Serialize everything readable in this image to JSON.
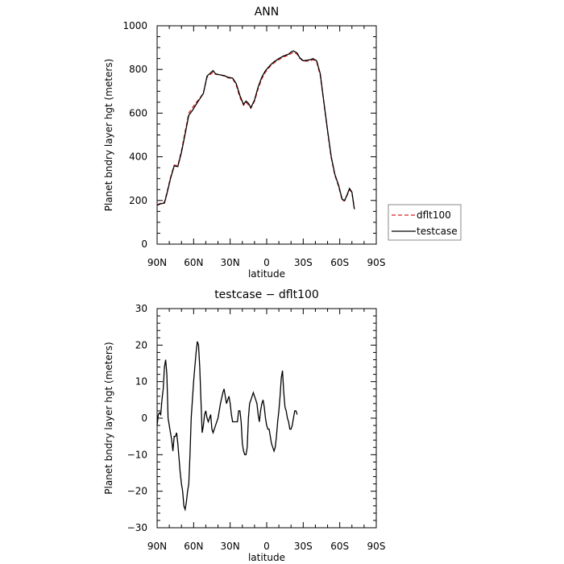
{
  "chart_data": [
    {
      "type": "line",
      "title": "ANN",
      "xlabel": "latitude",
      "ylabel": "Planet bndry layer hgt (meters)",
      "xlim": [
        90,
        -90
      ],
      "ylim": [
        0,
        1000
      ],
      "x_ticks": [
        {
          "value": 90,
          "label": "90N"
        },
        {
          "value": 60,
          "label": "60N"
        },
        {
          "value": 30,
          "label": "30N"
        },
        {
          "value": 0,
          "label": "0"
        },
        {
          "value": -30,
          "label": "30S"
        },
        {
          "value": -60,
          "label": "60S"
        },
        {
          "value": -90,
          "label": "90S"
        }
      ],
      "y_ticks": [
        0,
        200,
        400,
        600,
        800,
        1000
      ],
      "legend": {
        "placement": "right",
        "entries": [
          "dflt100",
          "testcase"
        ]
      },
      "series": [
        {
          "name": "testcase",
          "color": "#000000",
          "dash": "solid",
          "points": [
            [
              90,
              178
            ],
            [
              87,
              185
            ],
            [
              84,
              188
            ],
            [
              82,
              230
            ],
            [
              79,
              300
            ],
            [
              76,
              358
            ],
            [
              73,
              355
            ],
            [
              70,
              420
            ],
            [
              67,
              505
            ],
            [
              64,
              590
            ],
            [
              61,
              612
            ],
            [
              58,
              640
            ],
            [
              55,
              665
            ],
            [
              52,
              690
            ],
            [
              49,
              770
            ],
            [
              46,
              785
            ],
            [
              44,
              795
            ],
            [
              42,
              780
            ],
            [
              38,
              775
            ],
            [
              35,
              772
            ],
            [
              32,
              765
            ],
            [
              28,
              760
            ],
            [
              25,
              735
            ],
            [
              22,
              680
            ],
            [
              19,
              640
            ],
            [
              17,
              655
            ],
            [
              15,
              645
            ],
            [
              13,
              625
            ],
            [
              10,
              660
            ],
            [
              7,
              720
            ],
            [
              4,
              765
            ],
            [
              1,
              795
            ],
            [
              -3,
              820
            ],
            [
              -6,
              835
            ],
            [
              -10,
              850
            ],
            [
              -14,
              862
            ],
            [
              -18,
              870
            ],
            [
              -20,
              880
            ],
            [
              -22,
              885
            ],
            [
              -25,
              875
            ],
            [
              -27,
              855
            ],
            [
              -30,
              840
            ],
            [
              -33,
              842
            ],
            [
              -36,
              845
            ],
            [
              -38,
              850
            ],
            [
              -41,
              840
            ],
            [
              -44,
              780
            ],
            [
              -47,
              650
            ],
            [
              -50,
              520
            ],
            [
              -53,
              400
            ],
            [
              -56,
              320
            ],
            [
              -59,
              270
            ],
            [
              -62,
              205
            ],
            [
              -64,
              200
            ],
            [
              -66,
              225
            ],
            [
              -68,
              255
            ],
            [
              -70,
              238
            ],
            [
              -72,
              160
            ]
          ]
        },
        {
          "name": "dflt100",
          "color": "#d62020",
          "dash": "dashed",
          "points": [
            [
              90,
              180
            ],
            [
              87,
              188
            ],
            [
              84,
              192
            ],
            [
              82,
              235
            ],
            [
              79,
              305
            ],
            [
              76,
              362
            ],
            [
              73,
              360
            ],
            [
              70,
              428
            ],
            [
              67,
              515
            ],
            [
              64,
              600
            ],
            [
              61,
              625
            ],
            [
              58,
              648
            ],
            [
              55,
              668
            ],
            [
              52,
              692
            ],
            [
              49,
              765
            ],
            [
              46,
              778
            ],
            [
              44,
              788
            ],
            [
              42,
              778
            ],
            [
              38,
              775
            ],
            [
              35,
              770
            ],
            [
              32,
              762
            ],
            [
              28,
              758
            ],
            [
              25,
              728
            ],
            [
              22,
              672
            ],
            [
              19,
              636
            ],
            [
              17,
              650
            ],
            [
              15,
              638
            ],
            [
              13,
              622
            ],
            [
              10,
              655
            ],
            [
              7,
              712
            ],
            [
              4,
              758
            ],
            [
              1,
              788
            ],
            [
              -3,
              815
            ],
            [
              -6,
              830
            ],
            [
              -10,
              845
            ],
            [
              -14,
              858
            ],
            [
              -18,
              865
            ],
            [
              -20,
              873
            ],
            [
              -22,
              878
            ],
            [
              -25,
              870
            ],
            [
              -27,
              852
            ],
            [
              -30,
              838
            ],
            [
              -33,
              838
            ],
            [
              -36,
              840
            ],
            [
              -38,
              845
            ],
            [
              -41,
              835
            ],
            [
              -44,
              772
            ],
            [
              -47,
              645
            ],
            [
              -50,
              515
            ],
            [
              -53,
              395
            ],
            [
              -56,
              315
            ],
            [
              -59,
              265
            ],
            [
              -62,
              200
            ],
            [
              -64,
              198
            ],
            [
              -66,
              222
            ],
            [
              -68,
              250
            ],
            [
              -70,
              235
            ],
            [
              -72,
              162
            ]
          ]
        }
      ]
    },
    {
      "type": "line",
      "title": "testcase − dflt100",
      "xlabel": "latitude",
      "ylabel": "Planet bndry layer hgt (meters)",
      "xlim": [
        90,
        -90
      ],
      "ylim": [
        -30,
        30
      ],
      "x_ticks": [
        {
          "value": 90,
          "label": "90N"
        },
        {
          "value": 60,
          "label": "60N"
        },
        {
          "value": 30,
          "label": "30N"
        },
        {
          "value": 0,
          "label": "0"
        },
        {
          "value": -30,
          "label": "30S"
        },
        {
          "value": -60,
          "label": "60S"
        },
        {
          "value": -90,
          "label": "90S"
        }
      ],
      "y_ticks": [
        -30,
        -20,
        -10,
        0,
        10,
        20,
        30
      ],
      "series": [
        {
          "color": "#000000",
          "dash": "solid",
          "points": [
            [
              90,
              -2
            ],
            [
              89,
              1
            ],
            [
              88,
              1.5
            ],
            [
              87,
              1
            ],
            [
              86,
              5
            ],
            [
              85,
              8
            ],
            [
              84,
              14
            ],
            [
              83,
              16
            ],
            [
              82,
              12
            ],
            [
              81,
              0
            ],
            [
              80,
              -2
            ],
            [
              79,
              -4
            ],
            [
              78,
              -6
            ],
            [
              77,
              -9
            ],
            [
              76,
              -5
            ],
            [
              75,
              -5
            ],
            [
              74,
              -4
            ],
            [
              73,
              -7
            ],
            [
              72,
              -11
            ],
            [
              71,
              -15
            ],
            [
              70,
              -18
            ],
            [
              69,
              -20
            ],
            [
              68,
              -24
            ],
            [
              67,
              -25
            ],
            [
              66,
              -23
            ],
            [
              65,
              -20
            ],
            [
              64,
              -18
            ],
            [
              63,
              -10
            ],
            [
              62,
              0
            ],
            [
              61,
              5
            ],
            [
              60,
              10
            ],
            [
              59,
              14
            ],
            [
              58,
              18
            ],
            [
              57,
              21
            ],
            [
              56,
              20
            ],
            [
              55,
              14
            ],
            [
              54,
              5
            ],
            [
              53,
              -4
            ],
            [
              52,
              -2
            ],
            [
              51,
              1
            ],
            [
              50,
              2
            ],
            [
              49,
              0
            ],
            [
              48,
              -1
            ],
            [
              47,
              0
            ],
            [
              46,
              1
            ],
            [
              45,
              -3
            ],
            [
              44,
              -4
            ],
            [
              42,
              -2
            ],
            [
              40,
              0
            ],
            [
              38,
              4
            ],
            [
              36,
              7
            ],
            [
              35,
              8
            ],
            [
              34,
              6
            ],
            [
              33,
              4
            ],
            [
              32,
              5
            ],
            [
              31,
              6
            ],
            [
              30,
              4
            ],
            [
              29,
              1
            ],
            [
              28,
              -1
            ],
            [
              27,
              -1
            ],
            [
              26,
              -1
            ],
            [
              25,
              -1
            ],
            [
              24,
              -1
            ],
            [
              23,
              2
            ],
            [
              22,
              2
            ],
            [
              21,
              -1
            ],
            [
              20,
              -7
            ],
            [
              19,
              -9
            ],
            [
              18,
              -10
            ],
            [
              17,
              -10
            ],
            [
              16,
              -8
            ],
            [
              15,
              0
            ],
            [
              14,
              4
            ],
            [
              13,
              5
            ],
            [
              12,
              6
            ],
            [
              11,
              7
            ],
            [
              10,
              6
            ],
            [
              9,
              5
            ],
            [
              8,
              4
            ],
            [
              7,
              1
            ],
            [
              6,
              -1
            ],
            [
              5,
              2
            ],
            [
              4,
              4
            ],
            [
              3,
              5
            ],
            [
              2,
              3
            ],
            [
              1,
              0
            ],
            [
              0,
              -2
            ],
            [
              -1,
              -3
            ],
            [
              -2,
              -3
            ],
            [
              -3,
              -5
            ],
            [
              -4,
              -7
            ],
            [
              -5,
              -8
            ],
            [
              -6,
              -9
            ],
            [
              -7,
              -8
            ],
            [
              -8,
              -5
            ],
            [
              -9,
              -1
            ],
            [
              -10,
              2
            ],
            [
              -11,
              6
            ],
            [
              -12,
              11
            ],
            [
              -13,
              13
            ],
            [
              -14,
              7
            ],
            [
              -15,
              3
            ],
            [
              -16,
              2
            ],
            [
              -17,
              0
            ],
            [
              -18,
              -1
            ],
            [
              -19,
              -3
            ],
            [
              -20,
              -3
            ],
            [
              -21,
              -2
            ],
            [
              -22,
              0
            ],
            [
              -23,
              2
            ],
            [
              -24,
              2
            ],
            [
              -25,
              1
            ]
          ]
        }
      ]
    }
  ]
}
